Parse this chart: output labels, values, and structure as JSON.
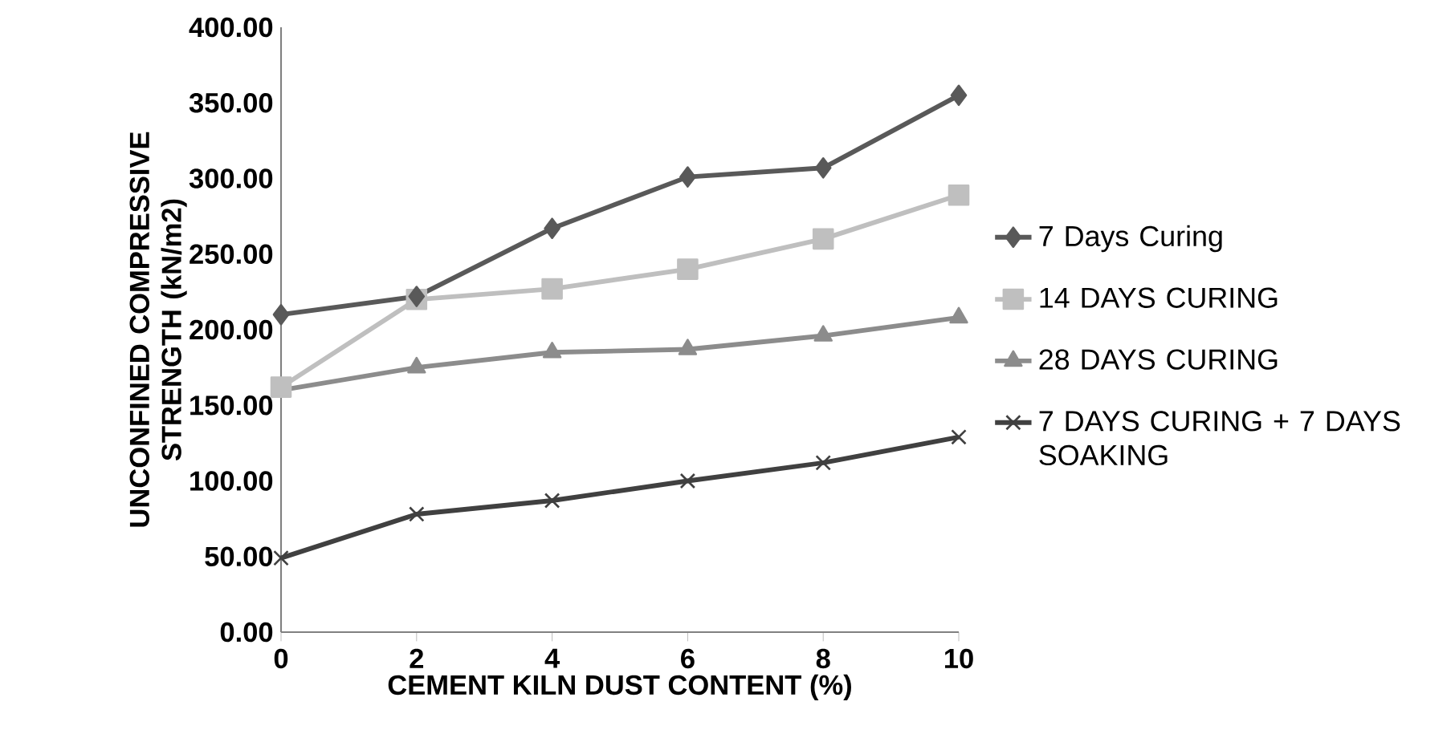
{
  "chart_data": {
    "type": "line",
    "xlabel": "CEMENT KILN DUST CONTENT (%)",
    "ylabel": "UNCONFINED COMPRESSIVE STRENGTH (kN/m2)",
    "x": [
      0,
      2,
      4,
      6,
      8,
      10
    ],
    "series": [
      {
        "name": "7 Days Curing",
        "color": "#595959",
        "marker": "diamond",
        "values": [
          210,
          222,
          267,
          301,
          307,
          355
        ]
      },
      {
        "name": "14 DAYS CURING",
        "color": "#bfbfbf",
        "marker": "square",
        "values": [
          162,
          220,
          227,
          240,
          260,
          289
        ]
      },
      {
        "name": "28 DAYS CURING",
        "color": "#8c8c8c",
        "marker": "triangle",
        "values": [
          160,
          175,
          185,
          187,
          196,
          208
        ]
      },
      {
        "name": "7 DAYS CURING + 7 DAYS SOAKING",
        "color": "#404040",
        "marker": "cross",
        "values": [
          49,
          78,
          87,
          100,
          112,
          129
        ]
      }
    ],
    "xlim": [
      0,
      10
    ],
    "ylim": [
      0,
      400
    ],
    "xticks": [
      0,
      2,
      4,
      6,
      8,
      10
    ],
    "yticks": [
      {
        "value": 0,
        "label": "0.00"
      },
      {
        "value": 50,
        "label": "50.00"
      },
      {
        "value": 100,
        "label": "100.00"
      },
      {
        "value": 150,
        "label": "150.00"
      },
      {
        "value": 200,
        "label": "200.00"
      },
      {
        "value": 250,
        "label": "250.00"
      },
      {
        "value": 300,
        "label": "300.00"
      },
      {
        "value": 350,
        "label": "350.00"
      },
      {
        "value": 400,
        "label": "400.00"
      }
    ],
    "grid": false,
    "legend": "right",
    "line_style": "solid"
  }
}
